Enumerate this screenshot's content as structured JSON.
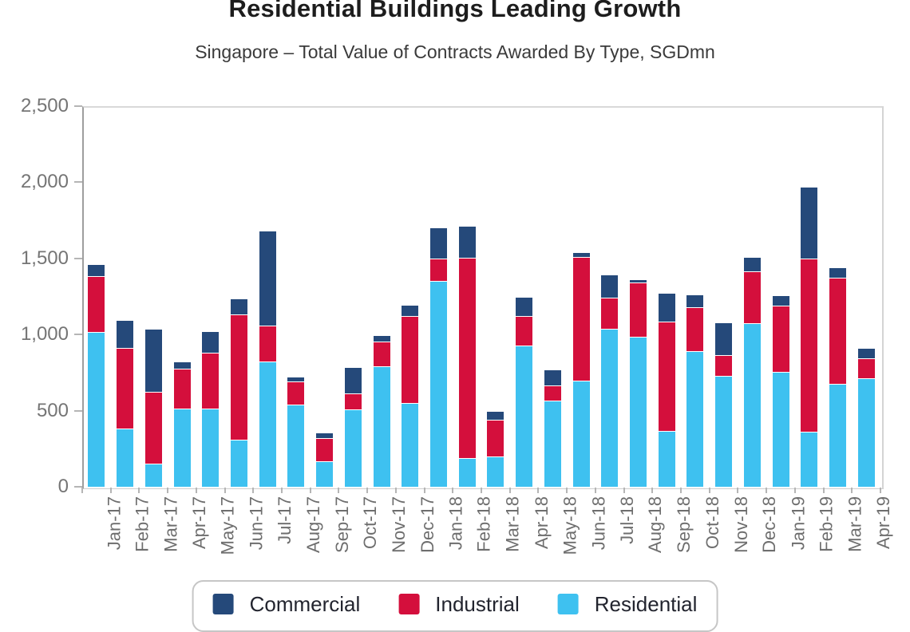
{
  "chart_data": {
    "type": "bar",
    "stacked": true,
    "title": "Residential Buildings Leading Growth",
    "subtitle": "Singapore – Total Value of Contracts Awarded By Type, SGDmn",
    "unit": "SGDmn",
    "categories": [
      "Jan-17",
      "Feb-17",
      "Mar-17",
      "Apr-17",
      "May-17",
      "Jun-17",
      "Jul-17",
      "Aug-17",
      "Sep-17",
      "Oct-17",
      "Nov-17",
      "Dec-17",
      "Jan-18",
      "Feb-18",
      "Mar-18",
      "Apr-18",
      "May-18",
      "Jun-18",
      "Jul-18",
      "Aug-18",
      "Sep-18",
      "Oct-18",
      "Nov-18",
      "Dec-18",
      "Jan-19",
      "Feb-19",
      "Mar-19",
      "Apr-19"
    ],
    "series": [
      {
        "name": "Commercial",
        "color": "#25497A",
        "values": [
          70,
          180,
          405,
          40,
          135,
          100,
          615,
          30,
          30,
          165,
          35,
          70,
          200,
          205,
          50,
          120,
          100,
          25,
          150,
          15,
          185,
          75,
          210,
          90,
          60,
          465,
          60,
          60
        ]
      },
      {
        "name": "Industrial",
        "color": "#D40F3C",
        "values": [
          365,
          525,
          470,
          255,
          360,
          815,
          230,
          145,
          150,
          100,
          160,
          565,
          145,
          1310,
          235,
          190,
          95,
          810,
          200,
          350,
          715,
          285,
          130,
          335,
          430,
          1135,
          695,
          130
        ]
      },
      {
        "name": "Residential",
        "color": "#3EC1F0",
        "values": [
          1010,
          375,
          145,
          510,
          510,
          305,
          820,
          535,
          160,
          505,
          785,
          545,
          1345,
          185,
          195,
          920,
          560,
          690,
          1030,
          980,
          360,
          885,
          725,
          1070,
          750,
          355,
          670,
          705
        ]
      }
    ],
    "stack_order_bottom_to_top": [
      "Residential",
      "Industrial",
      "Commercial"
    ],
    "ylim": [
      0,
      2500
    ],
    "yticks": [
      0,
      500,
      1000,
      1500,
      2000,
      2500
    ],
    "ytick_labels": [
      "0",
      "500",
      "1,000",
      "1,500",
      "2,000",
      "2,500"
    ],
    "grid": false,
    "legend_position": "bottom"
  }
}
